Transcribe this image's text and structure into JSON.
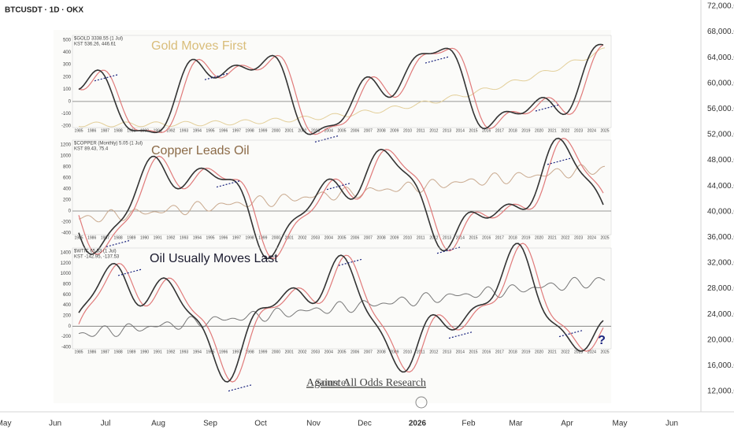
{
  "header": {
    "title": "BTCUSDT · 1D · OKX"
  },
  "price_axis": {
    "labels": [
      "72,000.0",
      "68,000.0",
      "64,000.0",
      "60,000.0",
      "56,000.0",
      "52,000.0",
      "48,000.0",
      "44,000.0",
      "40,000.0",
      "36,000.0",
      "32,000.0",
      "28,000.0",
      "24,000.0",
      "20,000.0",
      "16,000.0",
      "12,000.0"
    ]
  },
  "time_axis": {
    "labels": [
      "May",
      "Jun",
      "Jul",
      "Aug",
      "Sep",
      "Oct",
      "Nov",
      "Dec",
      "2026",
      "Feb",
      "Mar",
      "Apr",
      "May",
      "Jun"
    ]
  },
  "figure": {
    "panels": [
      {
        "title": "Gold Moves First",
        "legend": [
          "$GOLD 3338.55 (1 Jul)",
          "KST 536.26, 446.61"
        ],
        "y_labels": [
          "500",
          "400",
          "300",
          "200",
          "100",
          "0",
          "-100",
          "-200"
        ]
      },
      {
        "title": "Copper Leads Oil",
        "legend": [
          "$COPPER (Monthly) 5.05 (1 Jul)",
          "KST 89.43, 75.4"
        ],
        "y_labels": [
          "1200",
          "1000",
          "800",
          "600",
          "400",
          "200",
          "0",
          "-200",
          "-400"
        ]
      },
      {
        "title": "Oil Usually Moves Last",
        "legend": [
          "$WTIC 65.53 (1 Jul)",
          "KST -142.95, -137.53"
        ],
        "y_labels": [
          "1400",
          "1200",
          "1000",
          "800",
          "600",
          "400",
          "200",
          "0",
          "-200",
          "-400"
        ]
      }
    ],
    "years": [
      "1985",
      "1986",
      "1987",
      "1988",
      "1989",
      "1990",
      "1991",
      "1992",
      "1993",
      "1994",
      "1995",
      "1996",
      "1997",
      "1998",
      "1999",
      "2000",
      "2001",
      "2002",
      "2003",
      "2004",
      "2005",
      "2006",
      "2007",
      "2008",
      "2009",
      "2010",
      "2011",
      "2012",
      "2013",
      "2014",
      "2015",
      "2016",
      "2017",
      "2018",
      "2019",
      "2020",
      "2021",
      "2022",
      "2023",
      "2024",
      "2025"
    ],
    "source": {
      "prefix": "Source:",
      "link": "Against All Odds Research"
    },
    "annotation": "?"
  }
}
